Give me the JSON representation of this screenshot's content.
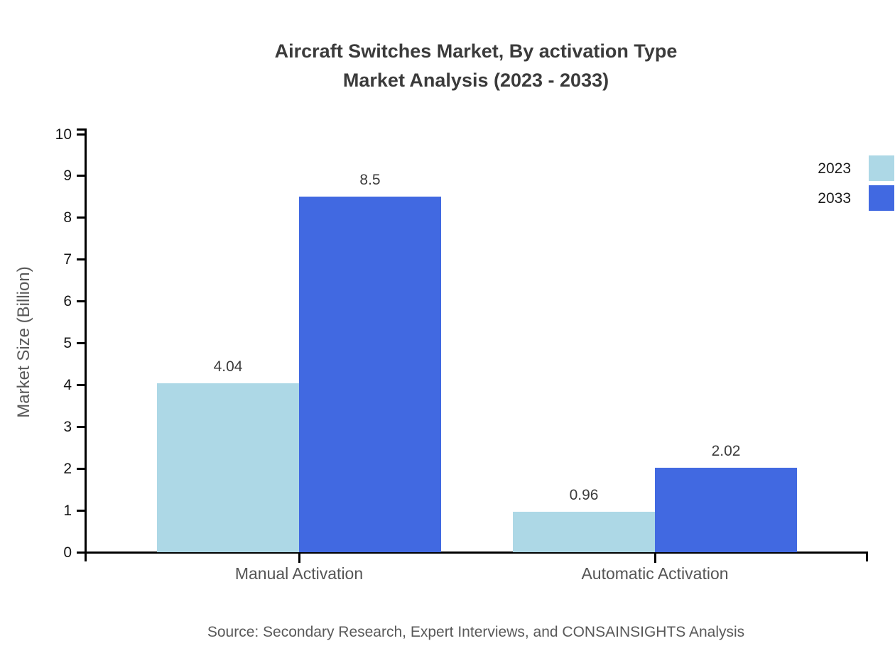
{
  "title": {
    "line1": "Aircraft Switches Market, By activation Type",
    "line2": "Market Analysis (2023 - 2033)"
  },
  "source": "Source: Secondary Research, Expert Interviews, and CONSAINSIGHTS Analysis",
  "chart_data": {
    "type": "bar",
    "title": "Aircraft Switches Market, By activation Type — Market Analysis (2023 - 2033)",
    "categories": [
      "Manual Activation",
      "Automatic Activation"
    ],
    "series": [
      {
        "name": "2023",
        "color": "#ADD8E6",
        "values": [
          4.04,
          0.96
        ]
      },
      {
        "name": "2033",
        "color": "#4169E1",
        "values": [
          8.5,
          2.02
        ]
      }
    ],
    "value_labels": [
      [
        "4.04",
        "0.96"
      ],
      [
        "8.5",
        "2.02"
      ]
    ],
    "xlabel": "",
    "ylabel": "Market Size (Billion)",
    "ylim": [
      0,
      10
    ],
    "yticks": [
      0,
      1,
      2,
      3,
      4,
      5,
      6,
      7,
      8,
      9,
      10
    ],
    "grid": false,
    "legend_position": "top-right"
  },
  "colors": {
    "series_2023": "#ADD8E6",
    "series_2033": "#4169E1",
    "axis": "#000000",
    "title_text": "#3b3b3b",
    "muted_text": "#595959"
  }
}
